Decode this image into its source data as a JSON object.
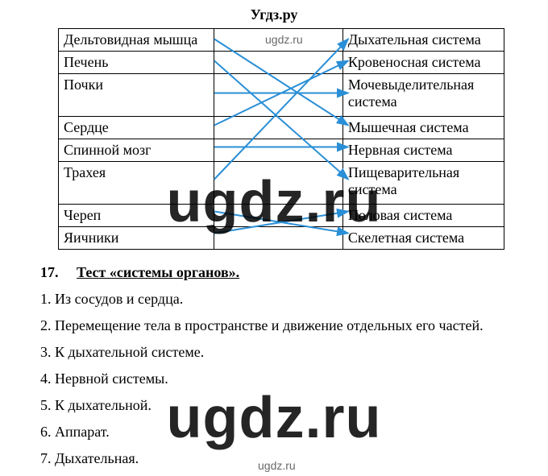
{
  "header": "Угдз.ру",
  "watermark_small": "ugdz.ru",
  "watermark_big": "ugdz.ru",
  "arrow_color": "#2a8fd6",
  "arrow_width": 2,
  "table": {
    "left": [
      "Дельтовидная мышца",
      "Печень",
      "Почки",
      "Сердце",
      "Спинной мозг",
      "Трахея",
      "Череп",
      "Яичники"
    ],
    "right": [
      "Дыхательная система",
      "Кровеносная система",
      "Мочевыделительная система",
      "Мышечная система",
      "Нервная система",
      "Пищеварительная система",
      "Половая система",
      "Скелетная система"
    ],
    "left_row_heights": [
      27,
      27,
      53,
      27,
      27,
      53,
      27,
      27
    ],
    "right_row_heights": [
      27,
      27,
      53,
      27,
      27,
      53,
      27,
      27
    ],
    "arrows": [
      {
        "from": 0,
        "to": 3
      },
      {
        "from": 1,
        "to": 5
      },
      {
        "from": 2,
        "to": 2
      },
      {
        "from": 3,
        "to": 1
      },
      {
        "from": 4,
        "to": 4
      },
      {
        "from": 5,
        "to": 0
      },
      {
        "from": 6,
        "to": 7
      },
      {
        "from": 7,
        "to": 6
      }
    ],
    "col_left_width": 192,
    "col_mid_width": 170,
    "col_right_width": 192
  },
  "section17": {
    "num": "17.",
    "title": "Тест «системы органов».",
    "items": [
      "1. Из сосудов и сердца.",
      "2. Перемещение тела в пространстве и движение отдельных его частей.",
      "3. К дыхательной системе.",
      "4. Нервной системы.",
      "5. К дыхательной.",
      "6. Аппарат.",
      "7. Дыхательная."
    ]
  }
}
